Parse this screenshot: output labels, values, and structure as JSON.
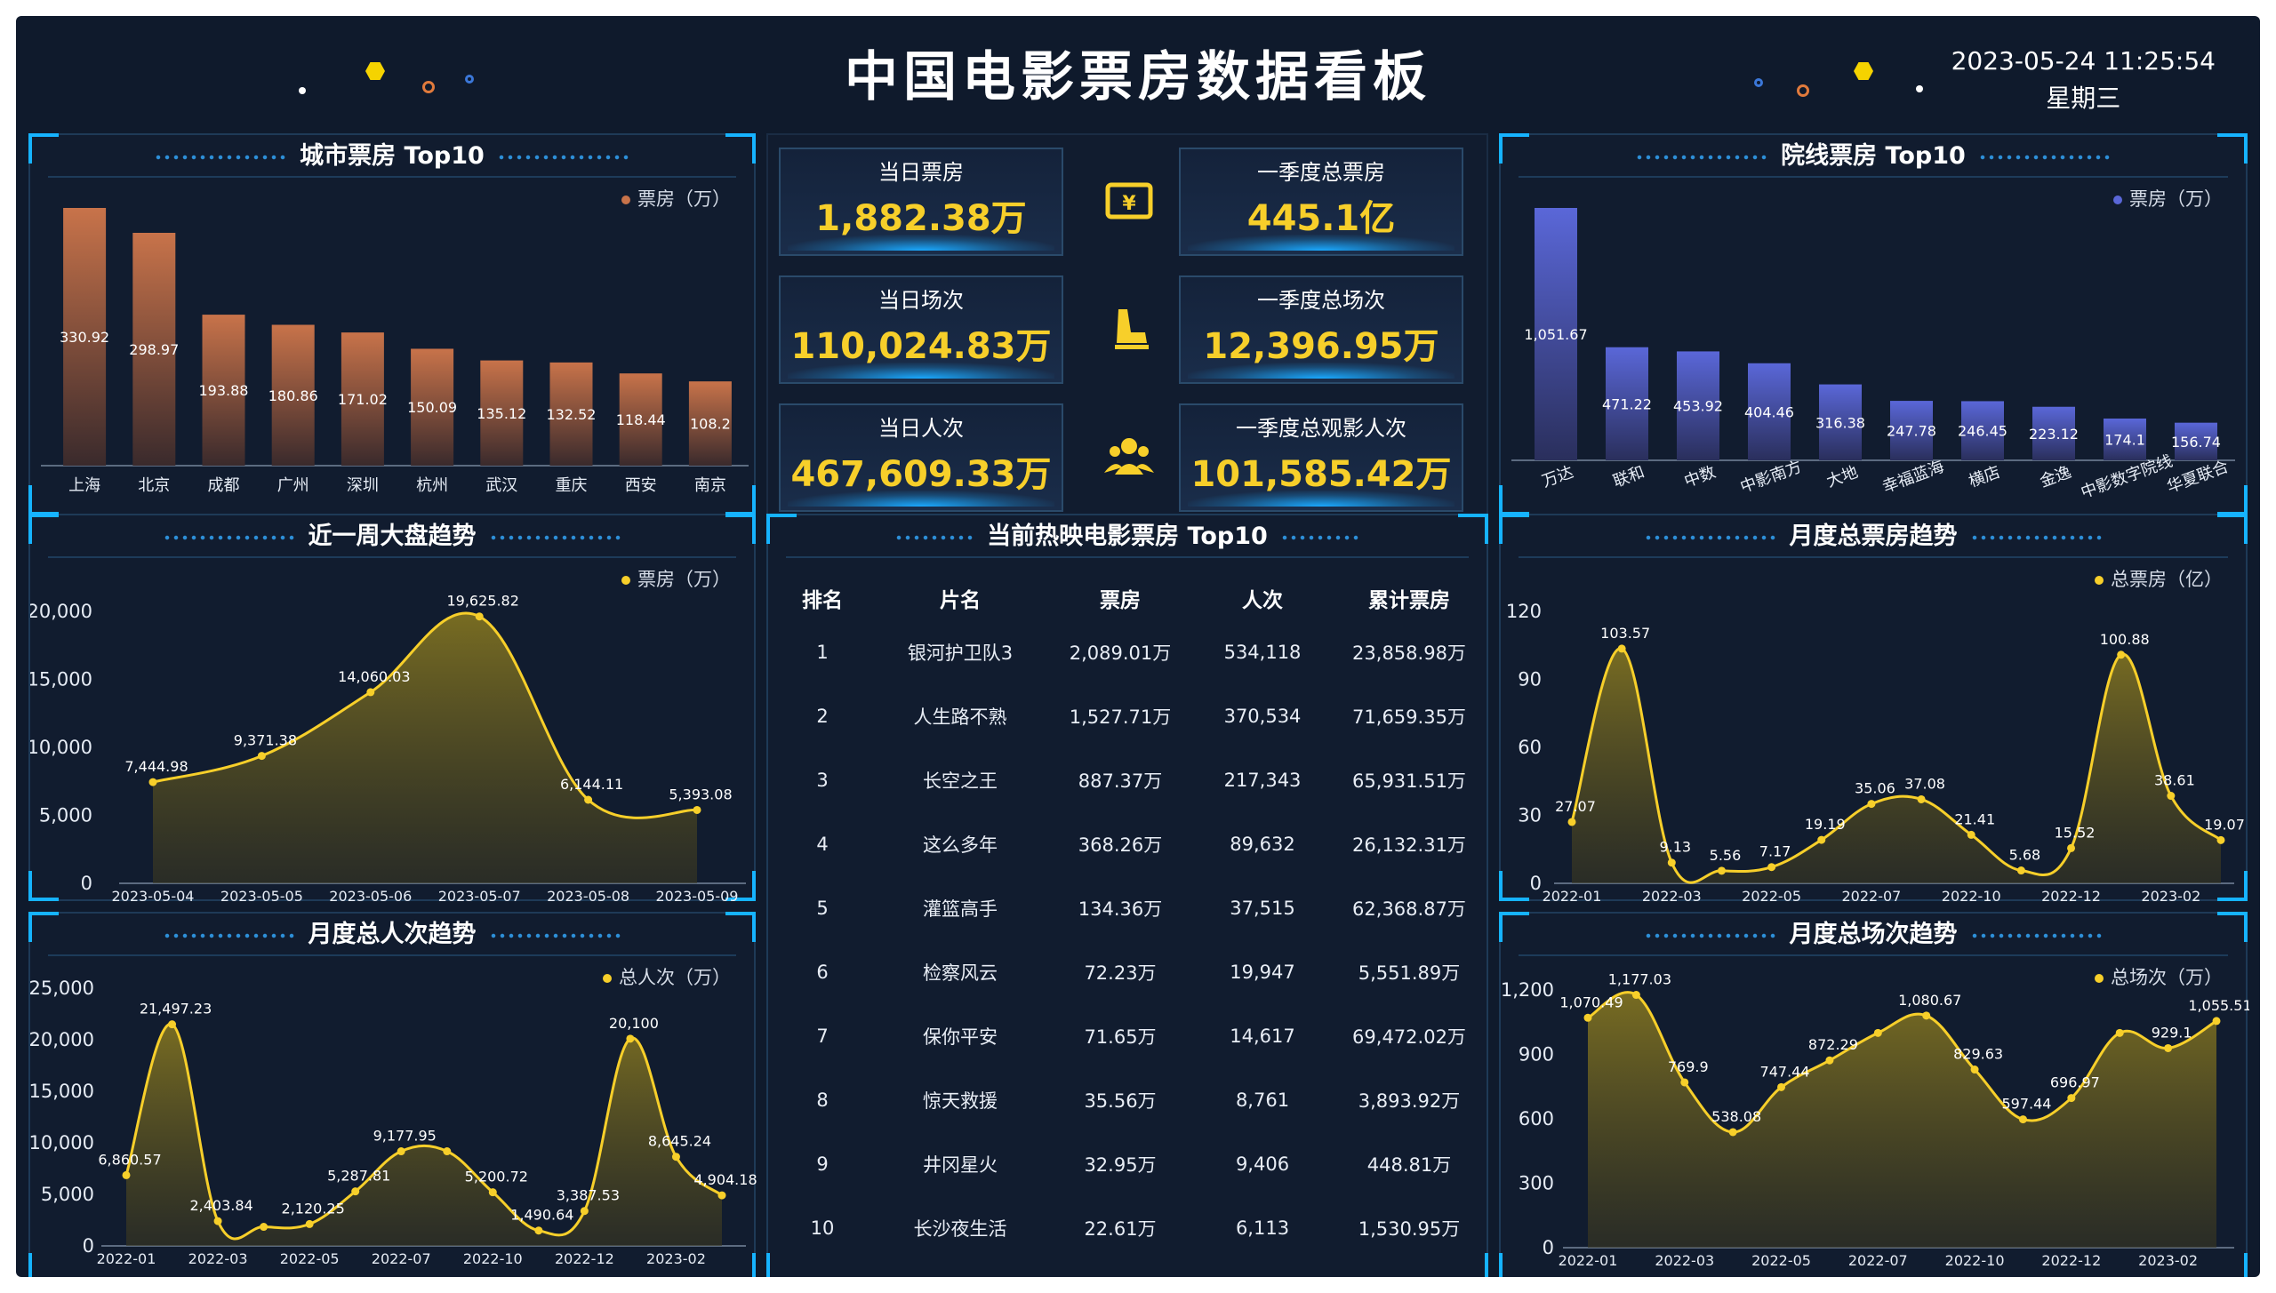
{
  "header": {
    "title": "中国电影票房数据看板",
    "datetime": "2023-05-24 11:25:54",
    "weekday": "星期三"
  },
  "colors": {
    "accent": "#16b3ff",
    "yellow": "#f7cf2a",
    "bar_city": "#c8734a",
    "bar_chain": "#5a67d8"
  },
  "kpis": {
    "daily_box_office": {
      "label": "当日票房",
      "value": "1,882.38万"
    },
    "q1_box_office": {
      "label": "一季度总票房",
      "value": "445.1亿"
    },
    "daily_shows": {
      "label": "当日场次",
      "value": "110,024.83万"
    },
    "q1_shows": {
      "label": "一季度总场次",
      "value": "12,396.95万"
    },
    "daily_audience": {
      "label": "当日人次",
      "value": "467,609.33万"
    },
    "q1_audience": {
      "label": "一季度总观影人次",
      "value": "101,585.42万"
    },
    "icons": [
      "ticket-icon",
      "seat-icon",
      "audience-icon"
    ]
  },
  "panels": {
    "city": {
      "title": "城市票房 Top10",
      "legend": "票房（万）"
    },
    "chain": {
      "title": "院线票房 Top10",
      "legend": "票房（万）"
    },
    "week": {
      "title": "近一周大盘趋势",
      "legend": "票房（万）"
    },
    "movies": {
      "title": "当前热映电影票房 Top10"
    },
    "monthly_box": {
      "title": "月度总票房趋势",
      "legend": "总票房（亿）"
    },
    "monthly_audience": {
      "title": "月度总人次趋势",
      "legend": "总人次（万）"
    },
    "monthly_shows": {
      "title": "月度总场次趋势",
      "legend": "总场次（万）"
    }
  },
  "movies": {
    "columns": [
      "排名",
      "片名",
      "票房",
      "人次",
      "累计票房"
    ],
    "rows": [
      [
        "1",
        "银河护卫队3",
        "2,089.01万",
        "534,118",
        "23,858.98万"
      ],
      [
        "2",
        "人生路不熟",
        "1,527.71万",
        "370,534",
        "71,659.35万"
      ],
      [
        "3",
        "长空之王",
        "887.37万",
        "217,343",
        "65,931.51万"
      ],
      [
        "4",
        "这么多年",
        "368.26万",
        "89,632",
        "26,132.31万"
      ],
      [
        "5",
        "灌篮高手",
        "134.36万",
        "37,515",
        "62,368.87万"
      ],
      [
        "6",
        "检察风云",
        "72.23万",
        "19,947",
        "5,551.89万"
      ],
      [
        "7",
        "保你平安",
        "71.65万",
        "14,617",
        "69,472.02万"
      ],
      [
        "8",
        "惊天救援",
        "35.56万",
        "8,761",
        "3,893.92万"
      ],
      [
        "9",
        "井冈星火",
        "32.95万",
        "9,406",
        "448.81万"
      ],
      [
        "10",
        "长沙夜生活",
        "22.61万",
        "6,113",
        "1,530.95万"
      ]
    ]
  },
  "chart_data": [
    {
      "id": "city",
      "type": "bar",
      "title": "城市票房 Top10",
      "categories": [
        "上海",
        "北京",
        "成都",
        "广州",
        "深圳",
        "杭州",
        "武汉",
        "重庆",
        "西安",
        "南京"
      ],
      "values": [
        330.92,
        298.97,
        193.88,
        180.86,
        171.02,
        150.09,
        135.12,
        132.52,
        118.44,
        108.2
      ],
      "legend": "票房（万）",
      "ylim": [
        0,
        330.92
      ]
    },
    {
      "id": "chain",
      "type": "bar",
      "title": "院线票房 Top10",
      "categories": [
        "万达",
        "联和",
        "中数",
        "中影南方",
        "大地",
        "幸福蓝海",
        "横店",
        "金逸",
        "中影数字院线",
        "华夏联合"
      ],
      "values": [
        1051.67,
        471.22,
        453.92,
        404.46,
        316.38,
        247.78,
        246.45,
        223.12,
        174.1,
        156.74
      ],
      "labels": [
        "1,051.67",
        "471.22",
        "453.92",
        "404.46",
        "316.38",
        "247.78",
        "246.45",
        "223.12",
        "174.1",
        "156.74"
      ],
      "legend": "票房（万）",
      "ylim": [
        0,
        1051.67
      ]
    },
    {
      "id": "week",
      "type": "area",
      "title": "近一周大盘趋势",
      "x": [
        "2023-05-04",
        "2023-05-05",
        "2023-05-06",
        "2023-05-07",
        "2023-05-08",
        "2023-05-09"
      ],
      "values": [
        7444.98,
        9371.38,
        14060.03,
        19625.82,
        6144.11,
        5393.08
      ],
      "labels": [
        "7,444.98",
        "9,371.38",
        "14,060.03",
        "19,625.82",
        "6,144.11",
        "5,393.08"
      ],
      "yticks": [
        "0",
        "5,000",
        "10,000",
        "15,000",
        "20,000"
      ],
      "ylim": [
        0,
        20000
      ],
      "legend": "票房（万）"
    },
    {
      "id": "monthly_audience",
      "type": "area",
      "title": "月度总人次趋势",
      "x_ticks": [
        "2022-01",
        "2022-03",
        "2022-05",
        "2022-07",
        "2022-10",
        "2022-12",
        "2023-02"
      ],
      "values": [
        6860.57,
        21497.23,
        2403.84,
        1850,
        2120.25,
        5287.81,
        9177.95,
        9177.95,
        5200.72,
        1490.64,
        3387.53,
        20100,
        8645.24,
        4904.18
      ],
      "labels": [
        "6,860.57",
        "21,497.23",
        "2,403.84",
        "",
        "2,120.25",
        "5,287.81",
        "9,177.95",
        "",
        "5,200.72",
        "1,490.64",
        "3,387.53",
        "20,100",
        "8,645.24",
        "4,904.18"
      ],
      "yticks": [
        "0",
        "5,000",
        "10,000",
        "15,000",
        "20,000",
        "25,000"
      ],
      "ylim": [
        0,
        25000
      ],
      "legend": "总人次（万）"
    },
    {
      "id": "monthly_box",
      "type": "area",
      "title": "月度总票房趋势",
      "x_ticks": [
        "2022-01",
        "2022-03",
        "2022-05",
        "2022-07",
        "2022-10",
        "2022-12",
        "2023-02"
      ],
      "values": [
        27.07,
        103.57,
        9.13,
        5.56,
        7.17,
        19.19,
        35.06,
        37.08,
        21.41,
        5.68,
        15.52,
        100.88,
        38.61,
        19.07
      ],
      "labels": [
        "27.07",
        "103.57",
        "9.13",
        "5.56",
        "7.17",
        "19.19",
        "35.06",
        "37.08",
        "21.41",
        "5.68",
        "15.52",
        "100.88",
        "38.61",
        "19.07"
      ],
      "yticks": [
        "0",
        "30",
        "60",
        "90",
        "120"
      ],
      "ylim": [
        0,
        120
      ],
      "legend": "总票房（亿）"
    },
    {
      "id": "monthly_shows",
      "type": "area",
      "title": "月度总场次趋势",
      "x_ticks": [
        "2022-01",
        "2022-03",
        "2022-05",
        "2022-07",
        "2022-10",
        "2022-12",
        "2023-02"
      ],
      "values": [
        1070.49,
        1177.03,
        769.9,
        538.08,
        747.44,
        872.29,
        1000,
        1080.67,
        829.63,
        597.44,
        696.97,
        1000,
        929.1,
        1055.51
      ],
      "labels": [
        "1,070.49",
        "1,177.03",
        "769.9",
        "538.08",
        "747.44",
        "872.29",
        "",
        "1,080.67",
        "829.63",
        "597.44",
        "696.97",
        "",
        "929.1",
        "1,055.51"
      ],
      "yticks": [
        "0",
        "300",
        "600",
        "900",
        "1,200"
      ],
      "ylim": [
        0,
        1200
      ],
      "legend": "总场次（万）"
    }
  ]
}
